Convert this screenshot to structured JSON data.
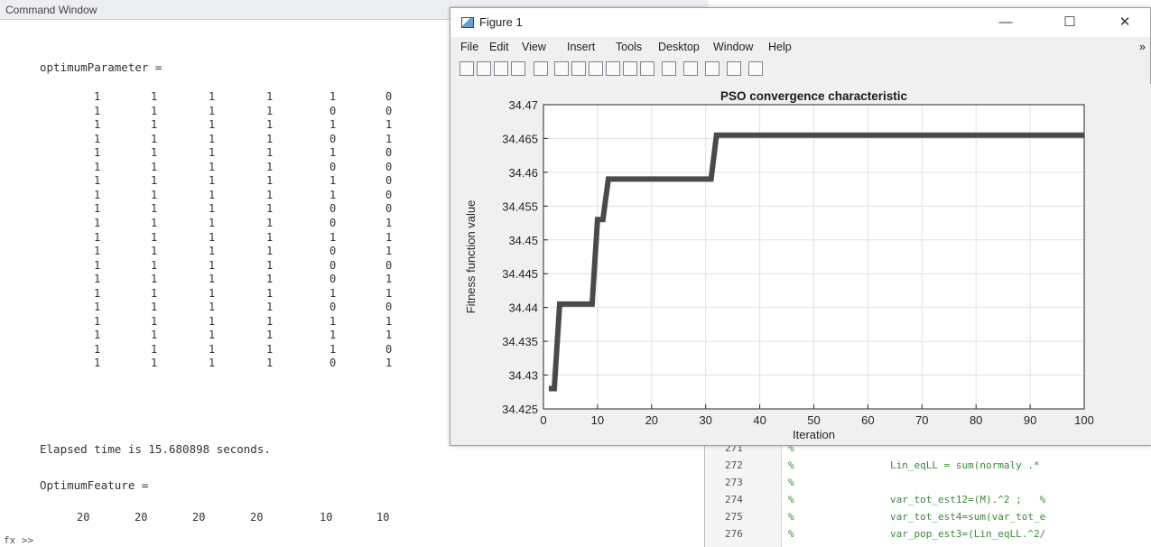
{
  "command_window": {
    "title": "Command Window",
    "var1_label": "optimumParameter =",
    "matrix": [
      [
        1,
        1,
        1,
        1,
        1,
        0
      ],
      [
        1,
        1,
        1,
        1,
        0,
        0
      ],
      [
        1,
        1,
        1,
        1,
        1,
        1
      ],
      [
        1,
        1,
        1,
        1,
        0,
        1
      ],
      [
        1,
        1,
        1,
        1,
        1,
        0
      ],
      [
        1,
        1,
        1,
        1,
        0,
        0
      ],
      [
        1,
        1,
        1,
        1,
        1,
        0
      ],
      [
        1,
        1,
        1,
        1,
        1,
        0
      ],
      [
        1,
        1,
        1,
        1,
        0,
        0
      ],
      [
        1,
        1,
        1,
        1,
        0,
        1
      ],
      [
        1,
        1,
        1,
        1,
        1,
        1
      ],
      [
        1,
        1,
        1,
        1,
        0,
        1
      ],
      [
        1,
        1,
        1,
        1,
        0,
        0
      ],
      [
        1,
        1,
        1,
        1,
        0,
        1
      ],
      [
        1,
        1,
        1,
        1,
        1,
        1
      ],
      [
        1,
        1,
        1,
        1,
        0,
        0
      ],
      [
        1,
        1,
        1,
        1,
        1,
        1
      ],
      [
        1,
        1,
        1,
        1,
        1,
        1
      ],
      [
        1,
        1,
        1,
        1,
        1,
        0
      ],
      [
        1,
        1,
        1,
        1,
        0,
        1
      ]
    ],
    "elapsed": "Elapsed time is 15.680898 seconds.",
    "var2_label": "OptimumFeature =",
    "features": [
      20,
      20,
      20,
      20,
      10,
      10
    ],
    "prompt": "fx >>"
  },
  "figure": {
    "title": "Figure 1",
    "controls": {
      "minimize": "—",
      "maximize": "☐",
      "close": "✕"
    },
    "menu": [
      "File",
      "Edit",
      "View",
      "Insert",
      "Tools",
      "Desktop",
      "Window",
      "Help"
    ],
    "menu_more": "»",
    "toolbar_icons": [
      "new-figure-icon",
      "open-file-icon",
      "save-icon",
      "print-icon",
      "pointer-icon",
      "zoom-in-icon",
      "zoom-out-icon",
      "pan-icon",
      "rotate-icon",
      "data-cursor-icon",
      "brush-icon",
      "link-icon",
      "colorbar-icon",
      "legend-icon",
      "property-editor-icon",
      "hide-plot-tools-icon"
    ]
  },
  "chart_data": {
    "type": "line",
    "title": "PSO convergence characteristic",
    "xlabel": "Iteration",
    "ylabel": "Fitness function value",
    "xlim": [
      0,
      100
    ],
    "ylim": [
      34.425,
      34.47
    ],
    "xticks": [
      0,
      10,
      20,
      30,
      40,
      50,
      60,
      70,
      80,
      90,
      100
    ],
    "yticks": [
      34.425,
      34.43,
      34.435,
      34.44,
      34.445,
      34.45,
      34.455,
      34.46,
      34.465,
      34.47
    ],
    "grid": true,
    "line_color": "#4a4a4a",
    "series": [
      {
        "x": [
          1,
          2,
          3,
          8,
          9,
          10,
          10,
          11,
          12,
          30,
          31,
          32,
          100
        ],
        "y": [
          34.428,
          34.428,
          34.4405,
          34.4405,
          34.4405,
          34.453,
          34.453,
          34.453,
          34.459,
          34.459,
          34.459,
          34.4655,
          34.4655
        ]
      }
    ]
  },
  "editor": {
    "lines": [
      {
        "num": "271",
        "comment": "%",
        "code": ""
      },
      {
        "num": "272",
        "comment": "%",
        "code": "Lin_eqLL = sum(normaly .* "
      },
      {
        "num": "273",
        "comment": "%",
        "code": ""
      },
      {
        "num": "274",
        "comment": "%",
        "code": "var_tot_est12=(M).^2 ;   %"
      },
      {
        "num": "275",
        "comment": "%",
        "code": "var_tot_est4=sum(var_tot_e"
      },
      {
        "num": "276",
        "comment": "%",
        "code": "var_pop_est3=(Lin_eqLL.^2/"
      }
    ]
  }
}
